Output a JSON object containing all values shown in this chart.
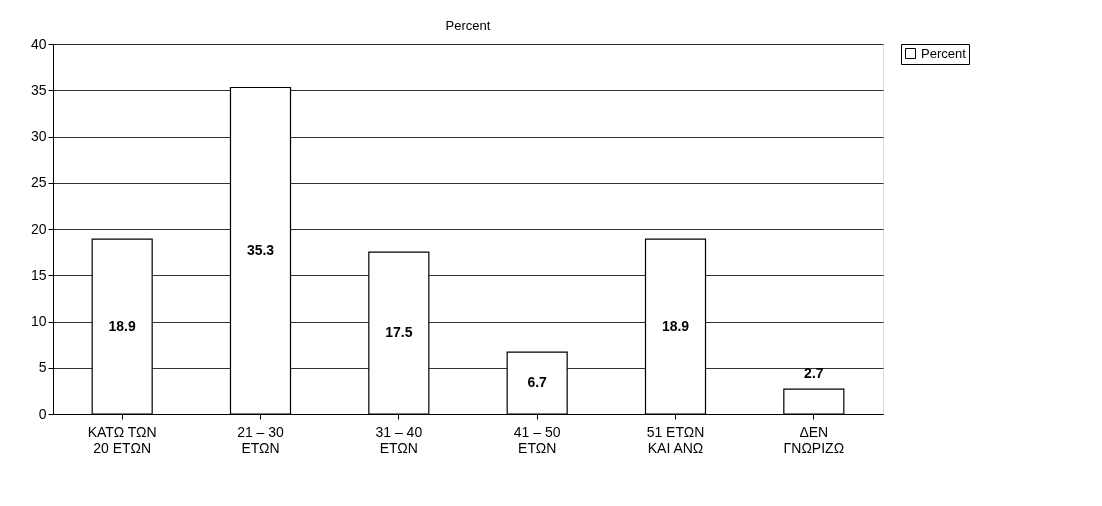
{
  "chart_data": {
    "type": "bar",
    "title": "Percent",
    "categories": [
      "ΚΑΤΩ ΤΩΝ\n20 ΕΤΩΝ",
      "21 – 30\nΕΤΩΝ",
      "31 – 40\nΕΤΩΝ",
      "41 – 50\nΕΤΩΝ",
      "51 ΕΤΩΝ\nΚΑΙ ΑΝΩ",
      "ΔΕΝ\nΓΝΩΡΙΖΩ"
    ],
    "series": [
      {
        "name": "Percent",
        "color": "#ffffff",
        "values": [
          18.9,
          35.3,
          17.5,
          6.7,
          18.9,
          2.7
        ]
      }
    ],
    "ylim": [
      0,
      40
    ],
    "yticks": [
      0,
      5,
      10,
      15,
      20,
      25,
      30,
      35,
      40
    ],
    "grid": "y",
    "legend": "right",
    "data_labels": true
  }
}
